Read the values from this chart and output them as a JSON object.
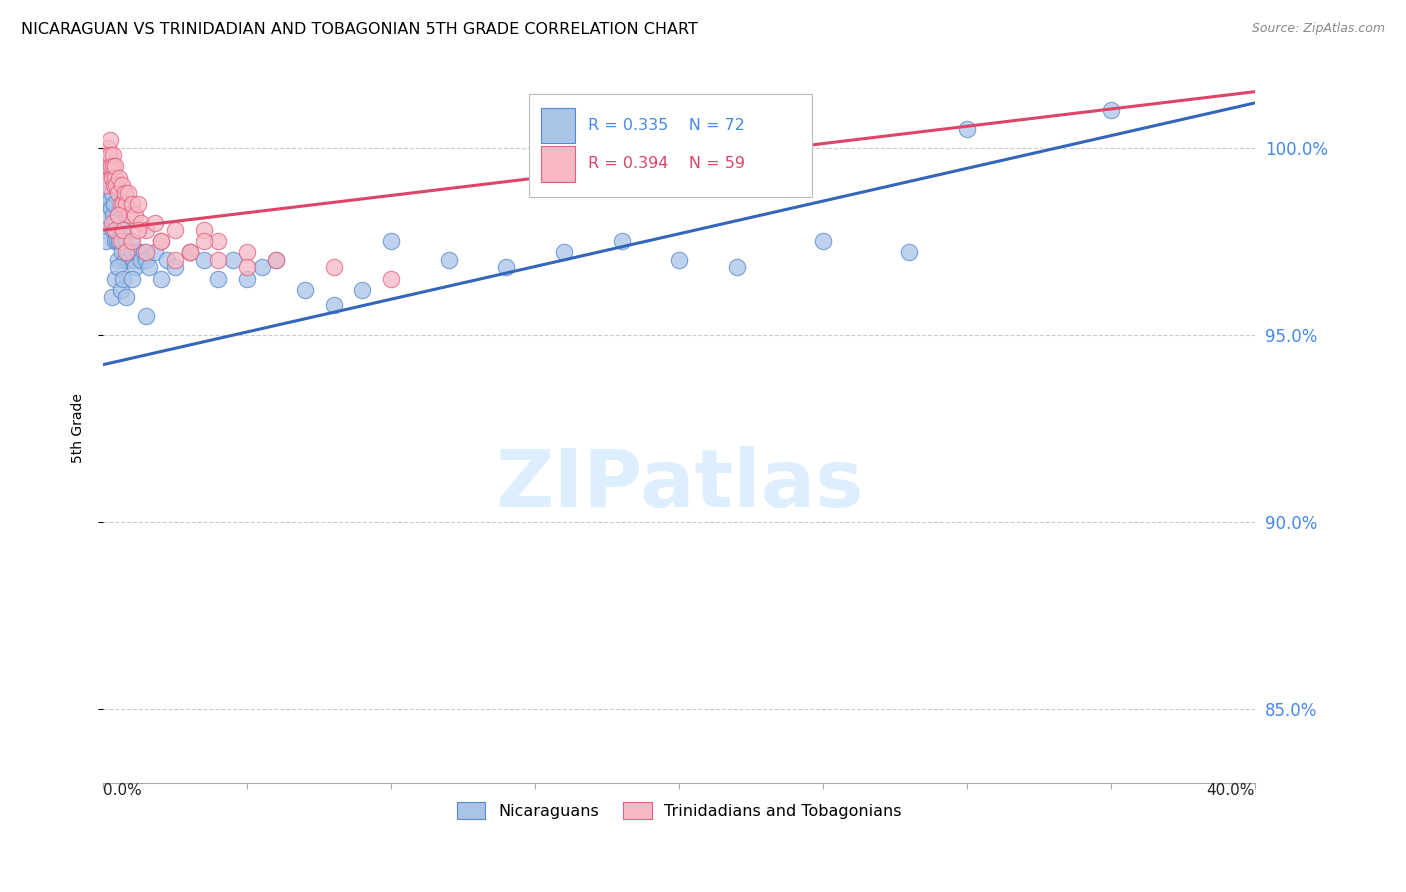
{
  "title": "NICARAGUAN VS TRINIDADIAN AND TOBAGONIAN 5TH GRADE CORRELATION CHART",
  "source": "Source: ZipAtlas.com",
  "ylabel": "5th Grade",
  "xmin": 0.0,
  "xmax": 40.0,
  "ymin": 83.0,
  "ymax": 102.0,
  "blue_R": 0.335,
  "blue_N": 72,
  "pink_R": 0.394,
  "pink_N": 59,
  "legend_label_blue": "Nicaraguans",
  "legend_label_pink": "Trinidadians and Tobagonians",
  "blue_color": "#aac4e8",
  "pink_color": "#f5b8c4",
  "blue_edge_color": "#5588cc",
  "pink_edge_color": "#e06080",
  "blue_line_color": "#3366bb",
  "pink_line_color": "#dd4466",
  "ytick_vals": [
    85.0,
    90.0,
    95.0,
    100.0
  ],
  "ytick_labels": [
    "85.0%",
    "90.0%",
    "95.0%",
    "100.0%"
  ],
  "right_axis_color": "#4488ee",
  "legend_text_blue_color": "#4488ee",
  "legend_text_pink_color": "#dd4466",
  "grid_color": "#cccccc",
  "watermark_color": "#ddeeff",
  "blue_scatter_x": [
    0.05,
    0.08,
    0.1,
    0.12,
    0.15,
    0.18,
    0.2,
    0.22,
    0.25,
    0.28,
    0.3,
    0.32,
    0.35,
    0.38,
    0.4,
    0.42,
    0.45,
    0.48,
    0.5,
    0.52,
    0.55,
    0.6,
    0.62,
    0.65,
    0.7,
    0.72,
    0.75,
    0.8,
    0.85,
    0.9,
    0.95,
    1.0,
    1.05,
    1.1,
    1.2,
    1.3,
    1.4,
    1.5,
    1.6,
    1.8,
    2.0,
    2.2,
    2.5,
    3.0,
    3.5,
    4.0,
    4.5,
    5.0,
    5.5,
    6.0,
    7.0,
    8.0,
    9.0,
    10.0,
    12.0,
    14.0,
    16.0,
    18.0,
    20.0,
    22.0,
    25.0,
    28.0,
    30.0,
    35.0,
    0.3,
    0.4,
    0.5,
    0.6,
    0.7,
    0.8,
    1.0,
    1.5
  ],
  "blue_scatter_y": [
    97.8,
    98.2,
    97.5,
    98.5,
    99.0,
    98.8,
    99.2,
    98.6,
    99.0,
    98.4,
    98.8,
    98.2,
    97.8,
    98.5,
    97.5,
    98.0,
    97.8,
    97.5,
    98.2,
    97.0,
    97.5,
    97.8,
    98.0,
    97.2,
    97.5,
    97.8,
    97.0,
    97.5,
    97.2,
    97.0,
    97.5,
    97.2,
    97.0,
    96.8,
    97.2,
    97.0,
    97.2,
    97.0,
    96.8,
    97.2,
    96.5,
    97.0,
    96.8,
    97.2,
    97.0,
    96.5,
    97.0,
    96.5,
    96.8,
    97.0,
    96.2,
    95.8,
    96.2,
    97.5,
    97.0,
    96.8,
    97.2,
    97.5,
    97.0,
    96.8,
    97.5,
    97.2,
    100.5,
    101.0,
    96.0,
    96.5,
    96.8,
    96.2,
    96.5,
    96.0,
    96.5,
    95.5
  ],
  "pink_scatter_x": [
    0.05,
    0.08,
    0.1,
    0.12,
    0.15,
    0.18,
    0.2,
    0.22,
    0.25,
    0.28,
    0.3,
    0.32,
    0.35,
    0.38,
    0.4,
    0.42,
    0.45,
    0.5,
    0.55,
    0.6,
    0.65,
    0.7,
    0.75,
    0.8,
    0.85,
    0.9,
    1.0,
    1.1,
    1.2,
    1.3,
    1.5,
    1.8,
    2.0,
    2.5,
    3.0,
    3.5,
    4.0,
    5.0,
    6.0,
    8.0,
    10.0,
    0.3,
    0.4,
    0.5,
    0.6,
    0.7,
    0.8,
    1.0,
    1.2,
    1.5,
    2.0,
    2.5,
    3.0,
    3.5,
    4.0,
    5.0,
    18.0,
    20.0,
    22.0
  ],
  "pink_scatter_y": [
    99.2,
    99.5,
    99.0,
    99.5,
    100.0,
    99.8,
    99.5,
    100.2,
    99.8,
    99.5,
    99.2,
    99.8,
    99.5,
    99.0,
    99.2,
    99.5,
    99.0,
    98.8,
    99.2,
    98.5,
    99.0,
    98.5,
    98.8,
    98.5,
    98.8,
    98.2,
    98.5,
    98.2,
    98.5,
    98.0,
    97.8,
    98.0,
    97.5,
    97.8,
    97.2,
    97.8,
    97.5,
    97.2,
    97.0,
    96.8,
    96.5,
    98.0,
    97.8,
    98.2,
    97.5,
    97.8,
    97.2,
    97.5,
    97.8,
    97.2,
    97.5,
    97.0,
    97.2,
    97.5,
    97.0,
    96.8,
    99.2,
    99.5,
    99.0
  ],
  "blue_trendline_y0": 94.2,
  "blue_trendline_y1": 101.2,
  "pink_trendline_y0": 97.8,
  "pink_trendline_y1": 101.5
}
